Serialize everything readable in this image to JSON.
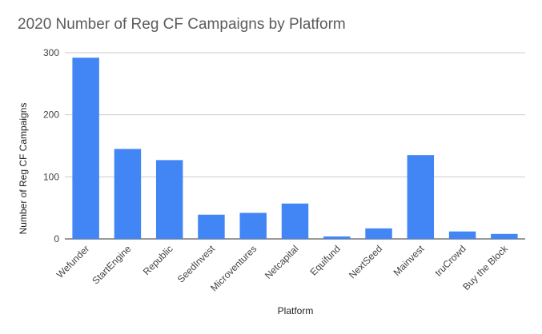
{
  "chart_data": {
    "type": "bar",
    "title": "2020 Number of Reg CF Campaigns by Platform",
    "xlabel": "Platform",
    "ylabel": "Number of Reg CF Campaigns",
    "categories": [
      "Wefunder",
      "StartEngine",
      "Republic",
      "SeedInvest",
      "Microventures",
      "Netcapital",
      "Equifund",
      "NextSeed",
      "Mainvest",
      "truCrowd",
      "Buy the Block"
    ],
    "values": [
      292,
      145,
      127,
      39,
      42,
      57,
      4,
      17,
      135,
      12,
      8
    ],
    "ylim": [
      0,
      300
    ],
    "yticks": [
      0,
      100,
      200,
      300
    ],
    "grid": true,
    "legend": "none",
    "bar_color": "#4285f4"
  }
}
